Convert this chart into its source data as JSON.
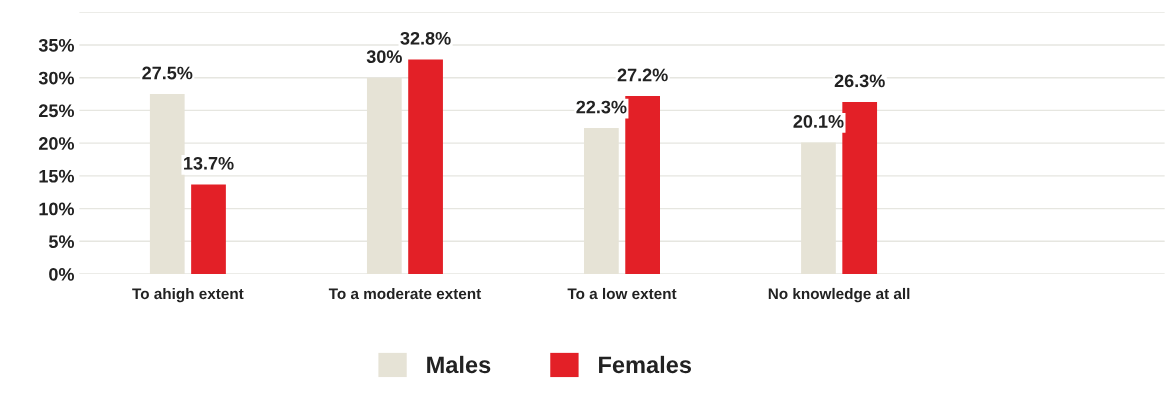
{
  "chart_data": {
    "type": "bar",
    "categories": [
      "To ahigh extent",
      "To a moderate extent",
      "To a low extent",
      "No knowledge at all",
      null
    ],
    "series": [
      {
        "name": "Males",
        "color": "#e6e3d6",
        "values": [
          27.5,
          30,
          22.3,
          20.1,
          null
        ],
        "value_labels": [
          "27.5%",
          "30%",
          "22.3%",
          "20.1%",
          null
        ]
      },
      {
        "name": "Females",
        "color": "#e32027",
        "values": [
          13.7,
          32.8,
          27.2,
          26.3,
          null
        ],
        "value_labels": [
          "13.7%",
          "32.8%",
          "27.2%",
          "26.3%",
          null
        ]
      }
    ],
    "ylim": [
      0,
      40
    ],
    "yticks": [
      {
        "value": 0,
        "label": "0%"
      },
      {
        "value": 5,
        "label": "5%"
      },
      {
        "value": 10,
        "label": "10%"
      },
      {
        "value": 15,
        "label": "15%"
      },
      {
        "value": 20,
        "label": "20%"
      },
      {
        "value": 25,
        "label": "25%"
      },
      {
        "value": 30,
        "label": "30%"
      },
      {
        "value": 35,
        "label": "35%"
      },
      {
        "value": 40,
        "label": null
      }
    ],
    "grid": "y",
    "legend": "bottom"
  }
}
